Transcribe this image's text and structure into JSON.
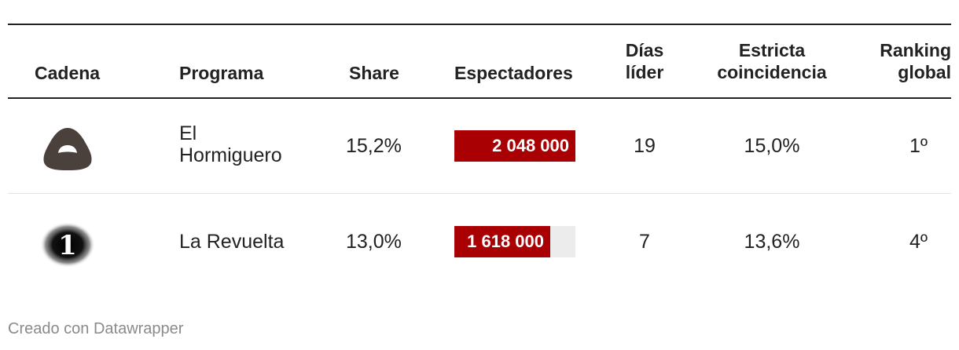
{
  "table": {
    "headers": {
      "cadena": "Cadena",
      "programa": "Programa",
      "share": "Share",
      "espectadores": "Espectadores",
      "dias_lider_1": "Días",
      "dias_lider_2": "líder",
      "estricta_1": "Estricta",
      "estricta_2": "coincidencia",
      "ranking_1": "Ranking",
      "ranking_2": "global"
    },
    "rows": [
      {
        "cadena_logo": "antena3-logo",
        "programa_1": "El",
        "programa_2": "Hormiguero",
        "share": "15,2%",
        "espectadores": "2 048 000",
        "dias_lider": "19",
        "estricta": "15,0%",
        "ranking": "1º"
      },
      {
        "cadena_logo": "la1-logo",
        "programa_1": "La Revuelta",
        "share": "13,0%",
        "espectadores": "1 618 000",
        "dias_lider": "7",
        "estricta": "13,6%",
        "ranking": "4º"
      }
    ]
  },
  "chart_data": {
    "type": "table",
    "columns": [
      "Cadena",
      "Programa",
      "Share",
      "Espectadores",
      "Días líder",
      "Estricta coincidencia",
      "Ranking global"
    ],
    "rows": [
      [
        "Antena 3",
        "El Hormiguero",
        "15,2%",
        2048000,
        19,
        "15,0%",
        "1º"
      ],
      [
        "La 1",
        "La Revuelta",
        "13,0%",
        1618000,
        7,
        "13,6%",
        "4º"
      ]
    ],
    "bar_column": "Espectadores",
    "bar_max": 2048000,
    "bar_color": "#a80003",
    "bar_track_color": "#ececec"
  },
  "footer": {
    "credit": "Creado con Datawrapper"
  }
}
